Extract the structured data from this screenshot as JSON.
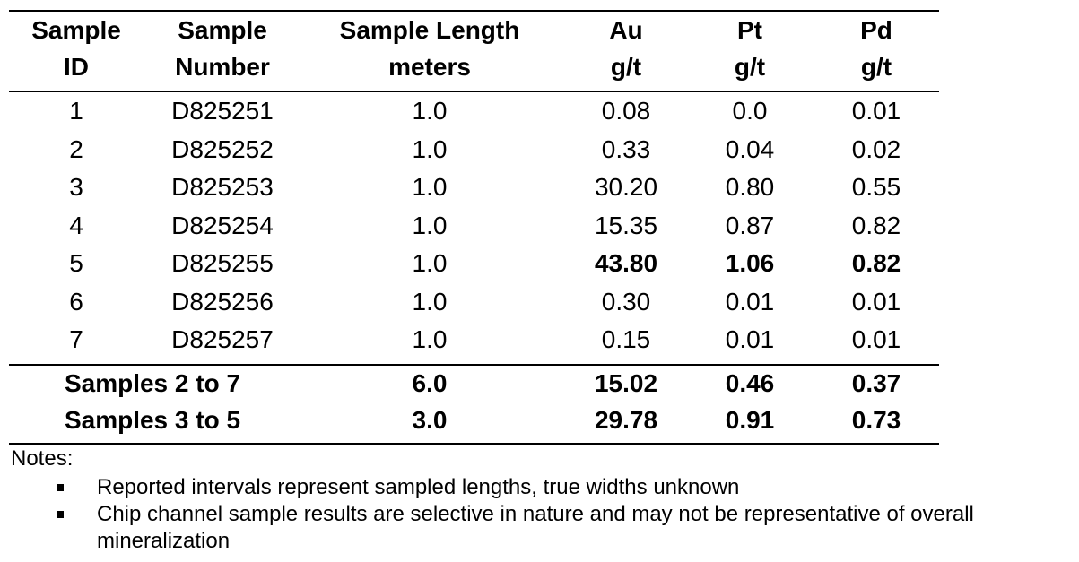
{
  "table": {
    "header": [
      [
        "Sample",
        "ID"
      ],
      [
        "Sample",
        "Number"
      ],
      [
        "Sample Length",
        "meters"
      ],
      [
        "Au",
        "g/t"
      ],
      [
        "Pt",
        "g/t"
      ],
      [
        "Pd",
        "g/t"
      ]
    ],
    "rows": [
      [
        "1",
        "D825251",
        "1.0",
        "0.08",
        "0.0",
        "0.01"
      ],
      [
        "2",
        "D825252",
        "1.0",
        "0.33",
        "0.04",
        "0.02"
      ],
      [
        "3",
        "D825253",
        "1.0",
        "30.20",
        "0.80",
        "0.55"
      ],
      [
        "4",
        "D825254",
        "1.0",
        "15.35",
        "0.87",
        "0.82"
      ],
      [
        "5",
        "D825255",
        "1.0",
        "43.80",
        "1.06",
        "0.82"
      ],
      [
        "6",
        "D825256",
        "1.0",
        "0.30",
        "0.01",
        "0.01"
      ],
      [
        "7",
        "D825257",
        "1.0",
        "0.15",
        "0.01",
        "0.01"
      ]
    ],
    "summary": [
      [
        "Samples 2 to 7",
        "6.0",
        "15.02",
        "0.46",
        "0.37"
      ],
      [
        "Samples 3 to 5",
        "3.0",
        "29.78",
        "0.91",
        "0.73"
      ]
    ]
  },
  "notes": {
    "title": "Notes:",
    "items": [
      "Reported intervals represent sampled lengths, true widths unknown",
      "Chip channel sample results are selective in nature and may not be representative of overall mineralization"
    ]
  }
}
